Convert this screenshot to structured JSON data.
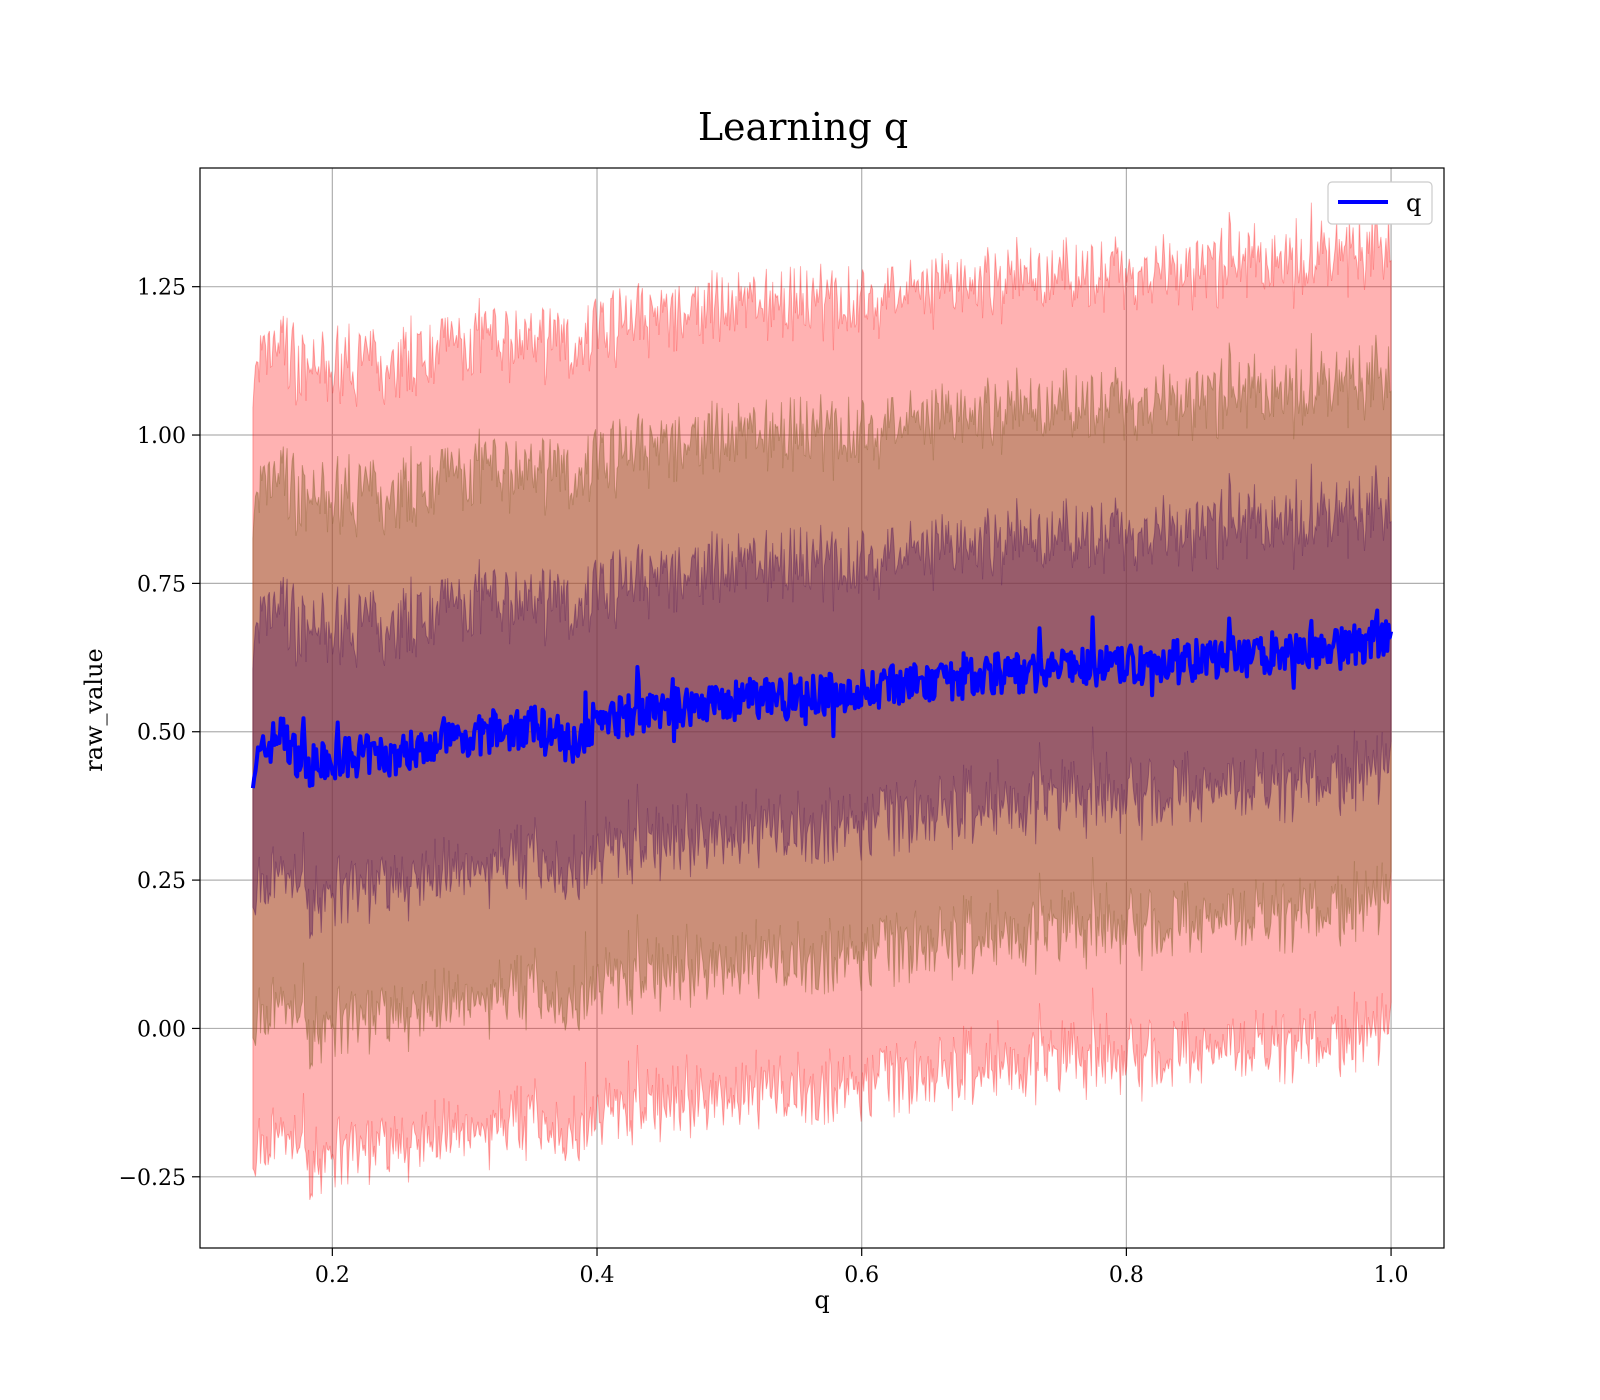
{
  "chart_data": {
    "type": "line",
    "title": "Learning q",
    "xlabel": "q",
    "ylabel": "raw_value",
    "xlim": [
      0.1,
      1.04
    ],
    "ylim": [
      -0.37,
      1.45
    ],
    "grid": true,
    "legend_position": "top-right",
    "xticks": [
      {
        "value": 0.2,
        "label": "0.2"
      },
      {
        "value": 0.4,
        "label": "0.4"
      },
      {
        "value": 0.6,
        "label": "0.6"
      },
      {
        "value": 0.8,
        "label": "0.8"
      },
      {
        "value": 1.0,
        "label": "1.0"
      }
    ],
    "yticks": [
      {
        "value": -0.25,
        "label": "−0.25"
      },
      {
        "value": 0.0,
        "label": "0.00"
      },
      {
        "value": 0.25,
        "label": "0.25"
      },
      {
        "value": 0.5,
        "label": "0.50"
      },
      {
        "value": 0.75,
        "label": "0.75"
      },
      {
        "value": 1.0,
        "label": "1.00"
      },
      {
        "value": 1.25,
        "label": "1.25"
      }
    ],
    "x": [
      0.14,
      0.16,
      0.18,
      0.2,
      0.22,
      0.25,
      0.28,
      0.3,
      0.33,
      0.36,
      0.38,
      0.4,
      0.43,
      0.46,
      0.48,
      0.5,
      0.53,
      0.56,
      0.6,
      0.63,
      0.66,
      0.7,
      0.73,
      0.76,
      0.8,
      0.83,
      0.86,
      0.9,
      0.93,
      0.96,
      1.0
    ],
    "series": [
      {
        "name": "q",
        "color": "#0000ff",
        "values": [
          0.44,
          0.5,
          0.44,
          0.45,
          0.46,
          0.46,
          0.49,
          0.49,
          0.5,
          0.51,
          0.48,
          0.52,
          0.53,
          0.54,
          0.55,
          0.55,
          0.56,
          0.56,
          0.57,
          0.58,
          0.58,
          0.6,
          0.6,
          0.61,
          0.61,
          0.62,
          0.62,
          0.63,
          0.64,
          0.64,
          0.66
        ]
      }
    ],
    "bands": [
      {
        "sigma": 1,
        "color": "#5a1e5a",
        "opacity": 0.45
      },
      {
        "sigma": 2,
        "color": "#8c6432",
        "opacity": 0.45
      },
      {
        "sigma": 3,
        "color": "#ff0000",
        "opacity": 0.3
      }
    ],
    "band_half_width": [
      0.22,
      0.22,
      0.22,
      0.22,
      0.22,
      0.22,
      0.22,
      0.22,
      0.22,
      0.22,
      0.22,
      0.22,
      0.22,
      0.22,
      0.22,
      0.22,
      0.22,
      0.22,
      0.22,
      0.22,
      0.22,
      0.22,
      0.22,
      0.22,
      0.22,
      0.22,
      0.22,
      0.22,
      0.22,
      0.22,
      0.22
    ]
  },
  "legend": {
    "items": [
      {
        "label": "q",
        "color": "#0000ff"
      }
    ]
  }
}
